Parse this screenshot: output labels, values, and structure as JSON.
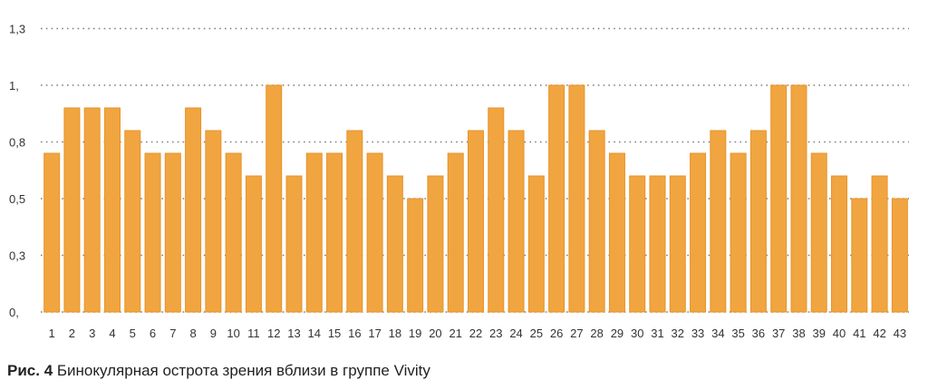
{
  "caption": {
    "lead": "Рис. 4",
    "text": " Бинокулярная острота зрения вблизи в группе Vivity"
  },
  "chart_data": {
    "type": "bar",
    "title": "",
    "xlabel": "",
    "ylabel": "",
    "ylim": [
      0,
      1.3
    ],
    "yticks": [
      {
        "value": 0,
        "label": "0,"
      },
      {
        "value": 0.25,
        "label": "0,3"
      },
      {
        "value": 0.5,
        "label": "0,5"
      },
      {
        "value": 0.75,
        "label": "0,8"
      },
      {
        "value": 1.0,
        "label": "1,"
      },
      {
        "value": 1.25,
        "label": "1,3"
      }
    ],
    "grid": true,
    "legend": "none",
    "bar_color": "#f0a540",
    "grid_color": "#7f7f7f",
    "categories": [
      "1",
      "2",
      "3",
      "4",
      "5",
      "6",
      "7",
      "8",
      "9",
      "10",
      "11",
      "12",
      "13",
      "14",
      "15",
      "16",
      "17",
      "18",
      "19",
      "20",
      "21",
      "22",
      "23",
      "24",
      "25",
      "26",
      "27",
      "28",
      "29",
      "30",
      "31",
      "32",
      "33",
      "34",
      "35",
      "36",
      "37",
      "38",
      "39",
      "40",
      "41",
      "42",
      "43"
    ],
    "values": [
      0.7,
      0.9,
      0.9,
      0.9,
      0.8,
      0.7,
      0.7,
      0.9,
      0.8,
      0.7,
      0.6,
      1.0,
      0.6,
      0.7,
      0.7,
      0.8,
      0.7,
      0.6,
      0.5,
      0.6,
      0.7,
      0.8,
      0.9,
      0.8,
      0.6,
      1.0,
      1.0,
      0.8,
      0.7,
      0.6,
      0.6,
      0.6,
      0.7,
      0.8,
      0.7,
      0.8,
      1.0,
      1.0,
      0.7,
      0.6,
      0.5,
      0.6,
      0.5
    ]
  }
}
